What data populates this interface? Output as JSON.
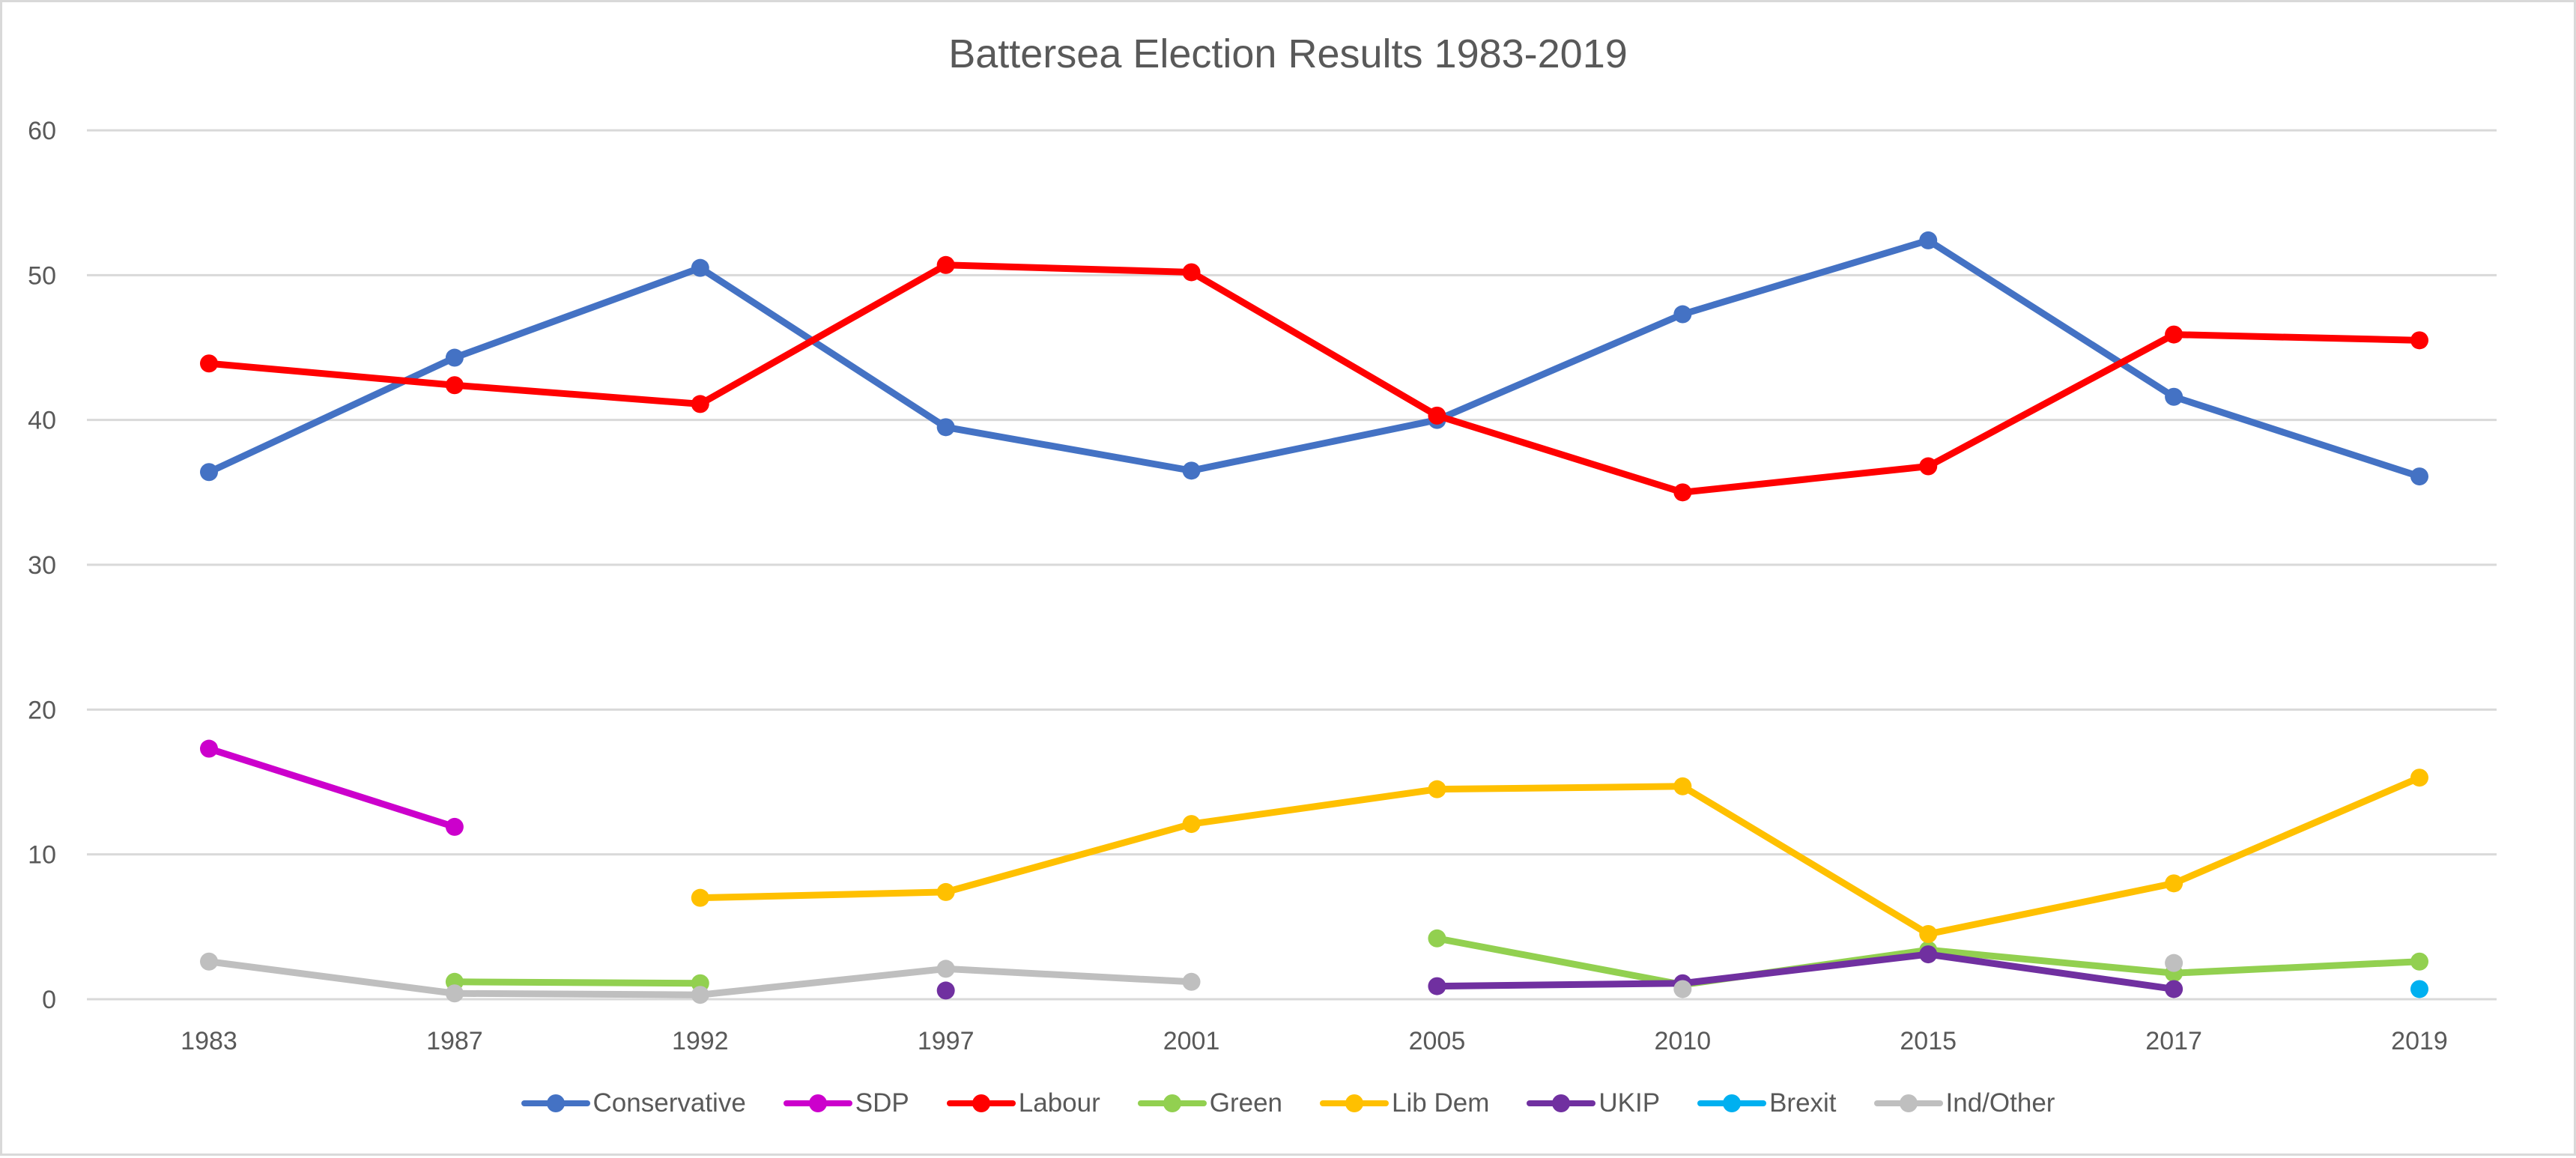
{
  "chart_data": {
    "type": "line",
    "title": "Battersea Election Results 1983-2019",
    "xlabel": "",
    "ylabel": "",
    "categories": [
      "1983",
      "1987",
      "1992",
      "1997",
      "2001",
      "2005",
      "2010",
      "2015",
      "2017",
      "2019"
    ],
    "ylim": [
      0,
      60
    ],
    "yticks": [
      "0",
      "10",
      "20",
      "30",
      "40",
      "50",
      "60"
    ],
    "grid": true,
    "legend_position": "bottom",
    "series": [
      {
        "name": "Conservative",
        "color": "#4472c4",
        "values": [
          36.4,
          44.3,
          50.5,
          39.5,
          36.5,
          40.0,
          47.3,
          52.4,
          41.6,
          36.1
        ]
      },
      {
        "name": "SDP",
        "color": "#cc00cc",
        "values": [
          17.3,
          11.9,
          null,
          null,
          null,
          null,
          null,
          null,
          null,
          null
        ]
      },
      {
        "name": "Labour",
        "color": "#ff0000",
        "values": [
          43.9,
          42.4,
          41.1,
          50.7,
          50.2,
          40.3,
          35.0,
          36.8,
          45.9,
          45.5
        ]
      },
      {
        "name": "Green",
        "color": "#92d050",
        "values": [
          null,
          1.2,
          1.1,
          null,
          null,
          4.2,
          1.0,
          3.4,
          1.8,
          2.6
        ]
      },
      {
        "name": "Lib Dem",
        "color": "#ffc000",
        "values": [
          null,
          null,
          7.0,
          7.4,
          12.1,
          14.5,
          14.7,
          4.5,
          8.0,
          15.3
        ]
      },
      {
        "name": "UKIP",
        "color": "#7030a0",
        "values": [
          null,
          null,
          null,
          0.6,
          null,
          0.9,
          1.1,
          3.1,
          0.7,
          null
        ]
      },
      {
        "name": "Brexit",
        "color": "#00b0f0",
        "values": [
          null,
          null,
          null,
          null,
          null,
          null,
          null,
          null,
          null,
          0.7
        ]
      },
      {
        "name": "Ind/Other",
        "color": "#bfbfbf",
        "values": [
          2.6,
          0.4,
          0.3,
          2.1,
          1.2,
          null,
          0.7,
          null,
          2.5,
          null
        ]
      }
    ]
  }
}
